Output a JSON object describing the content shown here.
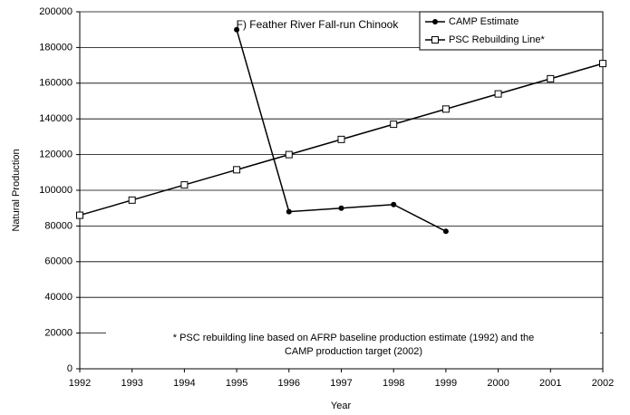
{
  "chart_data": {
    "type": "line",
    "title": "F) Feather River Fall-run Chinook",
    "x_label": "Year",
    "y_label": "Natural Production",
    "x": [
      1992,
      1993,
      1994,
      1995,
      1996,
      1997,
      1998,
      1999,
      2000,
      2001,
      2002
    ],
    "series": [
      {
        "name": "CAMP Estimate",
        "color": "#000000",
        "marker": "circle",
        "values": [
          null,
          null,
          null,
          190000,
          88000,
          90000,
          92000,
          77000,
          null,
          null,
          null
        ]
      },
      {
        "name": "PSC Rebuilding Line*",
        "color": "#000000",
        "marker": "square",
        "values": [
          86000,
          94500,
          103000,
          111500,
          120000,
          128500,
          137000,
          145500,
          154000,
          162500,
          171000
        ]
      }
    ],
    "xlim": [
      1992,
      2002
    ],
    "xticks": [
      1992,
      1993,
      1994,
      1995,
      1996,
      1997,
      1998,
      1999,
      2000,
      2001,
      2002
    ],
    "ylim": [
      0,
      200000
    ],
    "yticks": [
      0,
      20000,
      40000,
      60000,
      80000,
      100000,
      120000,
      140000,
      160000,
      180000,
      200000
    ],
    "grid": true,
    "legend": "upper right",
    "annotations": [
      "* PSC rebuilding line based on AFRP baseline production estimate (1992) and the",
      "CAMP production target (2002)"
    ]
  }
}
